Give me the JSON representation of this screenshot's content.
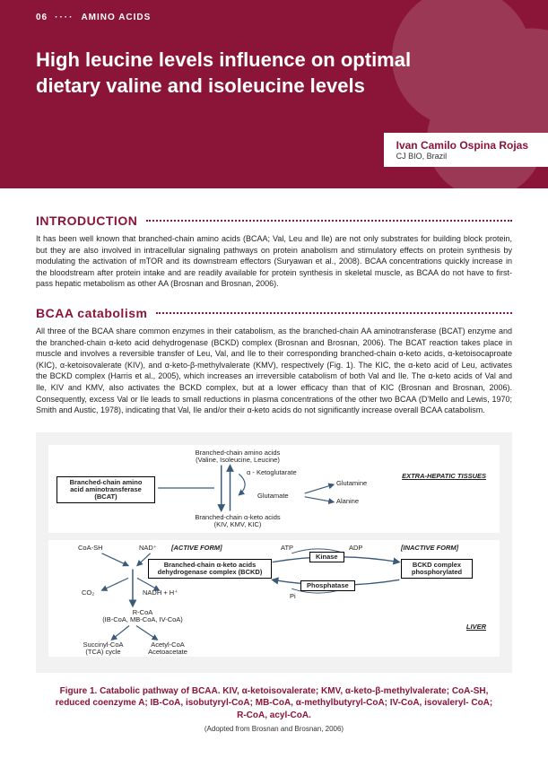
{
  "header": {
    "page_number": "06",
    "category": "AMINO ACIDS",
    "title": "High leucine levels influence on optimal dietary valine and isoleucine levels",
    "author_name": "Ivan Camilo Ospina Rojas",
    "author_affiliation": "CJ BIO, Brazil",
    "bg_color": "#8a1538"
  },
  "sections": {
    "intro": {
      "heading": "INTRODUCTION",
      "body": "It has been well known that branched-chain amino acids (BCAA; Val, Leu and Ile) are not only substrates for building block protein, but they are also involved in intracellular signaling pathways on protein anabolism and stimulatory effects on protein synthesis by modulating the activation of mTOR and its downstream effectors (Suryawan et al., 2008). BCAA concentrations quickly increase in the bloodstream after protein intake and are readily available for protein synthesis in skeletal muscle, as BCAA do not have to first-pass hepatic metabolism as other AA (Brosnan and Brosnan, 2006)."
    },
    "catabolism": {
      "heading": "BCAA catabolism",
      "body": "All three of the BCAA share common enzymes in their catabolism, as the branched-chain AA aminotransferase (BCAT) enzyme and the branched-chain α-keto acid dehydrogenase (BCKD) complex (Brosnan and Brosnan, 2006). The BCAT reaction takes place in muscle and involves a reversible transfer of Leu, Val, and Ile to their corresponding branched-chain α-keto acids, α-ketoisocaproate (KIC), α-ketoisovalerate (KIV), and α-keto-β-methylvalerate (KMV), respectively (Fig. 1). The KIC, the α-keto acid of Leu, activates the BCKD complex (Harris et al., 2005), which increases an irreversible catabolism of both Val and Ile. The α-keto acids of Val and Ile, KIV and KMV, also activates the BCKD complex, but at a lower efficacy than that of KIC (Brosnan and Brosnan, 2006). Consequently, excess Val or Ile leads to small reductions in plasma concentrations of the other two BCAA (D'Mello and Lewis, 1970; Smith and Austic, 1978), indicating that Val, Ile and/or their α-keto acids do not significantly increase overall BCAA catabolism."
    }
  },
  "figure": {
    "panel1": {
      "location": "EXTRA-HEPATIC TISSUES",
      "bcat_box": "Branched-chain amino\nacid aminotransferase\n(BCAT)",
      "bcaa_label": "Branched-chain amino acids\n(Valine, Isoleucine, Leucine)",
      "keto_label": "Branched-chain α-keto acids\n(KIV, KMV, KIC)",
      "alpha_kg": "α - Ketoglutarate",
      "glutamate": "Glutamate",
      "glutamine": "Glutamine",
      "alanine": "Alanine"
    },
    "panel2": {
      "location": "LIVER",
      "bckd_box": "Branched-chain α-keto acids\ndehydrogenase complex (BCKD)",
      "bckd_phos": "BCKD complex\nphosphorylated",
      "kinase": "Kinase",
      "phosphatase": "Phosphatase",
      "active": "[ACTIVE FORM]",
      "inactive": "[INACTIVE FORM]",
      "coash": "CoA-SH",
      "nad": "NAD⁺",
      "co2": "CO₂",
      "nadh": "NADH + H⁺",
      "atp": "ATP",
      "adp": "ADP",
      "pi": "Pi",
      "rcoa": "R-CoA\n(IB-CoA, MB-CoA, IV-CoA)",
      "succinyl": "Succinyl-CoA\n(TCA) cycle",
      "acetyl": "Acetyl-CoA\nAcetoacetate"
    },
    "caption": "Figure 1. Catabolic pathway of BCAA. KIV, α-ketoisovalerate; KMV, α-keto-β-methylvalerate; CoA-SH, reduced coenzyme A; IB-CoA, isobutyryl-CoA; MB-CoA, α-methylbutyryl-CoA; IV-CoA, isovaleryl- CoA; R-CoA, acyl-CoA.",
    "source": "(Adopted from Brosnan and Brosnan, 2006)",
    "colors": {
      "panel_bg": "#ffffff",
      "container_bg": "#f2f2f2",
      "line_color": "#3a5a7a",
      "box_border": "#000000"
    }
  }
}
